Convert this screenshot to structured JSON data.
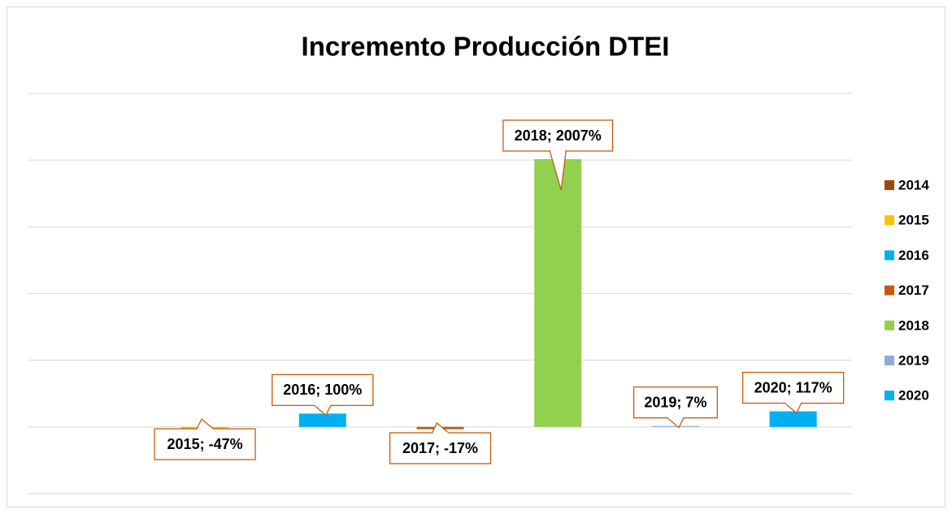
{
  "chart_data": {
    "type": "bar",
    "title": "Incremento Producción DTEI",
    "categories": [
      "2014",
      "2015",
      "2016",
      "2017",
      "2018",
      "2019",
      "2020"
    ],
    "values": [
      null,
      -47,
      100,
      -17,
      2007,
      7,
      117
    ],
    "value_labels": [
      null,
      "2015; -47%",
      "2016; 100%",
      "2017; -17%",
      "2018; 2007%",
      "2019; 7%",
      "2020; 117%"
    ],
    "colors": [
      "#9e480e",
      "#ffc000",
      "#00b0f0",
      "#c55a11",
      "#92d050",
      "#8faadc",
      "#00b0f0"
    ],
    "ylim": [
      -500,
      2500
    ],
    "yticks": [
      -500,
      0,
      500,
      1000,
      1500,
      2000,
      2500
    ],
    "grid": true,
    "legend": "right"
  }
}
